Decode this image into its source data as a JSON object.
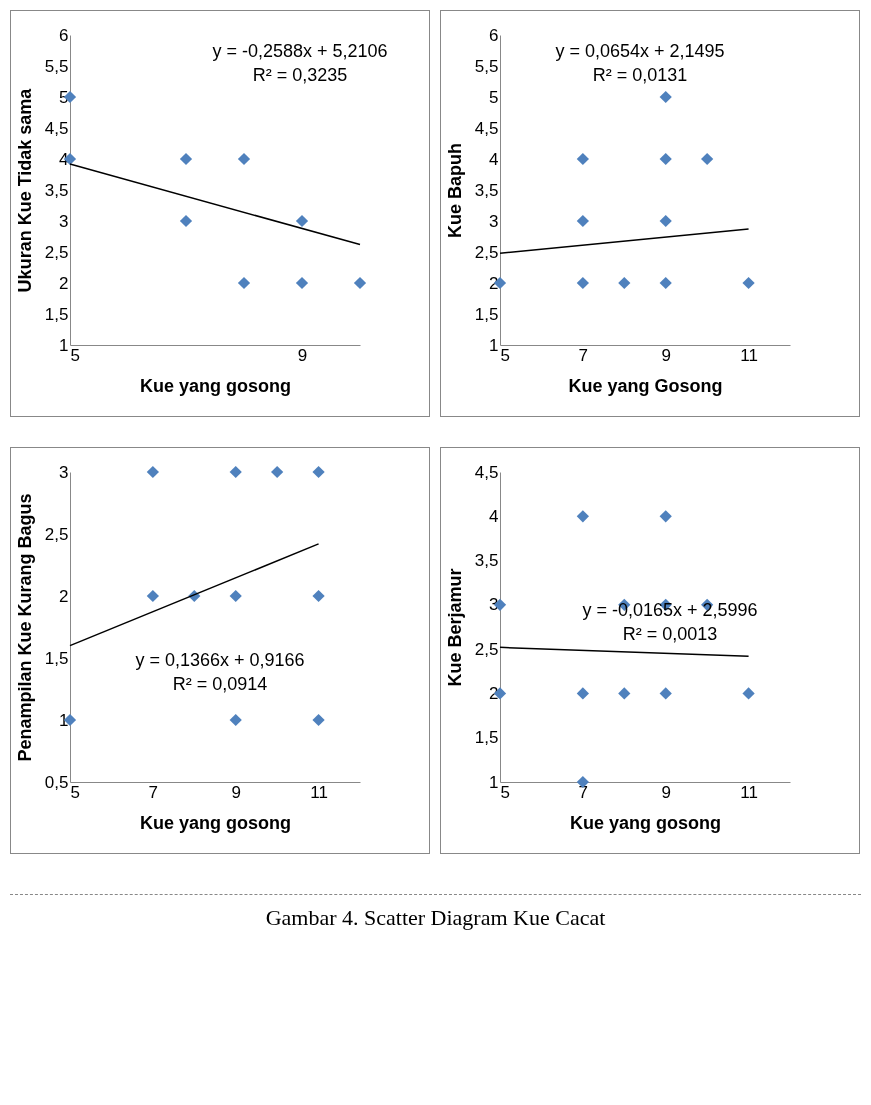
{
  "chart_data": [
    {
      "type": "scatter",
      "xlabel": "Kue yang gosong",
      "ylabel": "Ukuran Kue Tidak sama",
      "xlim": [
        5,
        10
      ],
      "xticks": [
        5,
        9
      ],
      "ylim": [
        1,
        6
      ],
      "yticks": [
        1,
        {
          "value": 1.5,
          "label": "1,5"
        },
        2,
        {
          "value": 2.5,
          "label": "2,5"
        },
        3,
        {
          "value": 3.5,
          "label": "3,5"
        },
        4,
        {
          "value": 4.5,
          "label": "4,5"
        },
        5,
        {
          "value": 5.5,
          "label": "5,5"
        },
        6
      ],
      "marker": "diamond",
      "grid": false,
      "annotations": [
        "y = -0,2588x + 5,2106",
        "R² = 0,3235"
      ],
      "series": [
        {
          "type": "scatter",
          "color": "#4f81bd",
          "x": [
            5,
            5,
            7,
            7,
            8,
            8,
            9,
            9,
            10
          ],
          "values": [
            5,
            4,
            4,
            3,
            4,
            2,
            3,
            2,
            2
          ]
        },
        {
          "type": "line",
          "marker": "none",
          "color": "#000000",
          "x": [
            5,
            10
          ],
          "values": [
            3.92,
            2.62
          ]
        }
      ]
    },
    {
      "type": "scatter",
      "xlabel": "Kue yang Gosong",
      "ylabel": "Kue Bapuh",
      "xlim": [
        5,
        12
      ],
      "xticks": [
        5,
        7,
        9,
        11
      ],
      "ylim": [
        1,
        6
      ],
      "yticks": [
        1,
        {
          "value": 1.5,
          "label": "1,5"
        },
        2,
        {
          "value": 2.5,
          "label": "2,5"
        },
        3,
        {
          "value": 3.5,
          "label": "3,5"
        },
        4,
        {
          "value": 4.5,
          "label": "4,5"
        },
        5,
        {
          "value": 5.5,
          "label": "5,5"
        },
        6
      ],
      "marker": "diamond",
      "grid": false,
      "annotations": [
        "y = 0,0654x + 2,1495",
        "R² = 0,0131"
      ],
      "series": [
        {
          "type": "scatter",
          "color": "#4f81bd",
          "x": [
            5,
            7,
            7,
            7,
            8,
            9,
            9,
            9,
            9,
            10,
            11
          ],
          "values": [
            2,
            4,
            3,
            2,
            2,
            5,
            4,
            3,
            2,
            4,
            2
          ]
        },
        {
          "type": "line",
          "marker": "none",
          "color": "#000000",
          "x": [
            5,
            11
          ],
          "values": [
            2.48,
            2.87
          ]
        }
      ]
    },
    {
      "type": "scatter",
      "xlabel": "Kue yang gosong",
      "ylabel": "Penampilan Kue Kurang Bagus",
      "xlim": [
        5,
        12
      ],
      "xticks": [
        5,
        7,
        9,
        11
      ],
      "ylim": [
        0.5,
        3
      ],
      "yticks": [
        {
          "value": 0.5,
          "label": "0,5"
        },
        1,
        {
          "value": 1.5,
          "label": "1,5"
        },
        2,
        {
          "value": 2.5,
          "label": "2,5"
        },
        3
      ],
      "marker": "diamond",
      "grid": false,
      "annotations": [
        "y = 0,1366x + 0,9166",
        "R² = 0,0914"
      ],
      "series": [
        {
          "type": "scatter",
          "color": "#4f81bd",
          "x": [
            7,
            9,
            10,
            11,
            7,
            8,
            9,
            11,
            5,
            9,
            11
          ],
          "values": [
            3,
            3,
            3,
            3,
            2,
            2,
            2,
            2,
            1,
            1,
            1
          ]
        },
        {
          "type": "line",
          "marker": "none",
          "color": "#000000",
          "x": [
            5,
            11
          ],
          "values": [
            1.6,
            2.42
          ]
        }
      ]
    },
    {
      "type": "scatter",
      "xlabel": "Kue yang gosong",
      "ylabel": "Kue Berjamur",
      "xlim": [
        5,
        12
      ],
      "xticks": [
        5,
        7,
        9,
        11
      ],
      "ylim": [
        1,
        4.5
      ],
      "yticks": [
        1,
        {
          "value": 1.5,
          "label": "1,5"
        },
        2,
        {
          "value": 2.5,
          "label": "2,5"
        },
        3,
        {
          "value": 3.5,
          "label": "3,5"
        },
        4,
        {
          "value": 4.5,
          "label": "4,5"
        }
      ],
      "marker": "diamond",
      "grid": false,
      "annotations": [
        "y = -0,0165x + 2,5996",
        "R² = 0,0013",
        "Gambar 4.  Scatter Diagram Kue Cacat"
      ],
      "series": [
        {
          "type": "scatter",
          "color": "#4f81bd",
          "x": [
            7,
            9,
            5,
            8,
            9,
            10,
            5,
            7,
            8,
            9,
            11,
            7
          ],
          "values": [
            4,
            4,
            3,
            3,
            3,
            3,
            2,
            2,
            2,
            2,
            2,
            1
          ]
        },
        {
          "type": "line",
          "marker": "none",
          "color": "#000000",
          "x": [
            5,
            11
          ],
          "values": [
            2.52,
            2.42
          ]
        }
      ]
    }
  ]
}
